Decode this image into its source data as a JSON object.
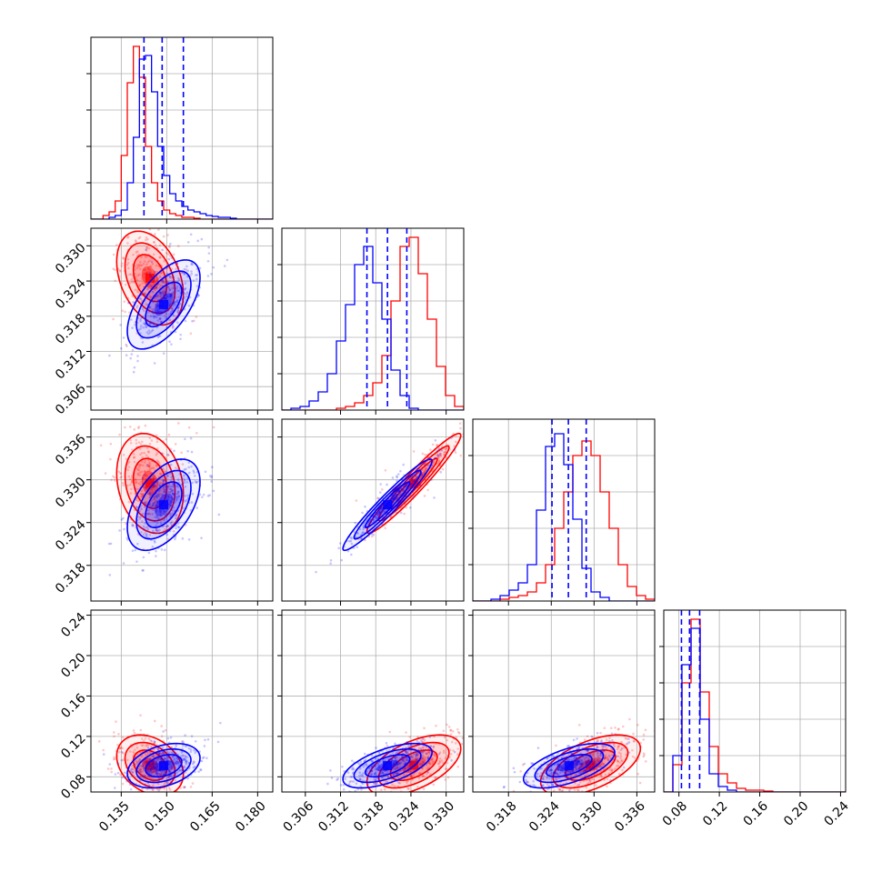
{
  "colors": {
    "red": "#ff0000",
    "blue": "#0000ff",
    "grid": "#b0b0b0",
    "frame": "#000000"
  },
  "chart_data": {
    "type": "scatter",
    "layout": "corner-plot",
    "grid": true,
    "series": [
      {
        "color": "#ff0000",
        "means": [
          0.1445,
          0.3245,
          0.3295,
          0.0915
        ],
        "sds": [
          0.0055,
          0.004,
          0.0035,
          0.015
        ],
        "corr": [
          [
            1,
            -0.35,
            -0.2,
            -0.3
          ],
          [
            -0.35,
            1,
            0.96,
            0.55
          ],
          [
            -0.2,
            0.96,
            1,
            0.55
          ],
          [
            -0.3,
            0.55,
            0.55,
            1
          ]
        ]
      },
      {
        "color": "#0000ff",
        "means": [
          0.149,
          0.32,
          0.3265,
          0.091
        ],
        "sds": [
          0.006,
          0.0038,
          0.0032,
          0.011
        ],
        "corr": [
          [
            1,
            0.6,
            0.5,
            0.35
          ],
          [
            0.6,
            1,
            0.96,
            0.6
          ],
          [
            0.5,
            0.96,
            1,
            0.6
          ],
          [
            0.35,
            0.6,
            0.6,
            1
          ]
        ]
      }
    ],
    "marginal_histograms": [
      {
        "bins": [
          0.125,
          0.185,
          30
        ],
        "red": [
          0,
          0,
          0.02,
          0.04,
          0.1,
          0.35,
          0.75,
          0.95,
          0.78,
          0.4,
          0.2,
          0.1,
          0.05,
          0.03,
          0.02,
          0.01,
          0.01,
          0.005,
          0,
          0,
          0,
          0,
          0,
          0,
          0,
          0,
          0,
          0,
          0,
          0
        ],
        "blue": [
          0,
          0,
          0,
          0.01,
          0.02,
          0.05,
          0.2,
          0.45,
          0.88,
          0.9,
          0.7,
          0.4,
          0.24,
          0.14,
          0.1,
          0.07,
          0.05,
          0.04,
          0.03,
          0.02,
          0.015,
          0.01,
          0.01,
          0.005,
          0,
          0,
          0,
          0,
          0,
          0
        ],
        "quantiles": [
          0.1425,
          0.1485,
          0.1555
        ]
      },
      {
        "bins": [
          0.302,
          0.333,
          20
        ],
        "red": [
          0,
          0,
          0,
          0,
          0,
          0,
          0.01,
          0.02,
          0.04,
          0.08,
          0.15,
          0.3,
          0.6,
          0.9,
          0.95,
          0.75,
          0.5,
          0.24,
          0.08,
          0.02
        ],
        "blue": [
          0,
          0.01,
          0.02,
          0.05,
          0.1,
          0.2,
          0.38,
          0.58,
          0.8,
          0.9,
          0.7,
          0.5,
          0.22,
          0.08,
          0.01,
          0,
          0,
          0,
          0,
          0
        ],
        "quantiles": [
          0.3165,
          0.32,
          0.3233
        ]
      },
      {
        "bins": [
          0.313,
          0.3385,
          20
        ],
        "red": [
          0,
          0,
          0,
          0.01,
          0.02,
          0.03,
          0.05,
          0.1,
          0.2,
          0.4,
          0.6,
          0.8,
          0.88,
          0.8,
          0.6,
          0.4,
          0.2,
          0.08,
          0.03,
          0.01
        ],
        "blue": [
          0,
          0,
          0.01,
          0.03,
          0.06,
          0.1,
          0.2,
          0.5,
          0.85,
          0.92,
          0.75,
          0.45,
          0.18,
          0.05,
          0.02,
          0,
          0,
          0,
          0,
          0
        ],
        "quantiles": [
          0.3241,
          0.3264,
          0.3289
        ]
      },
      {
        "bins": [
          0.065,
          0.245,
          20
        ],
        "red": [
          0,
          0.15,
          0.6,
          0.95,
          0.55,
          0.25,
          0.1,
          0.05,
          0.02,
          0.01,
          0.01,
          0.005,
          0,
          0,
          0,
          0,
          0,
          0,
          0,
          0
        ],
        "blue": [
          0,
          0.2,
          0.7,
          0.9,
          0.4,
          0.1,
          0.03,
          0.01,
          0,
          0,
          0,
          0,
          0,
          0,
          0,
          0,
          0,
          0,
          0,
          0
        ],
        "quantiles": [
          0.0825,
          0.0905,
          0.1005
        ]
      }
    ],
    "axes": [
      {
        "range": [
          0.125,
          0.185
        ],
        "ticks": [
          0.135,
          0.15,
          0.165,
          0.18
        ],
        "tick_labels": [
          "0.135",
          "0.150",
          "0.165",
          "0.180"
        ]
      },
      {
        "range": [
          0.302,
          0.333
        ],
        "ticks": [
          0.306,
          0.312,
          0.318,
          0.324,
          0.33
        ],
        "tick_labels": [
          "0.306",
          "0.312",
          "0.318",
          "0.324",
          "0.330"
        ]
      },
      {
        "range": [
          0.313,
          0.3385
        ],
        "ticks": [
          0.318,
          0.324,
          0.33,
          0.336
        ],
        "tick_labels": [
          "0.318",
          "0.324",
          "0.330",
          "0.336"
        ]
      },
      {
        "range": [
          0.065,
          0.245
        ],
        "ticks": [
          0.08,
          0.12,
          0.16,
          0.2,
          0.24
        ],
        "tick_labels": [
          "0.08",
          "0.12",
          "0.16",
          "0.20",
          "0.24"
        ]
      }
    ]
  }
}
